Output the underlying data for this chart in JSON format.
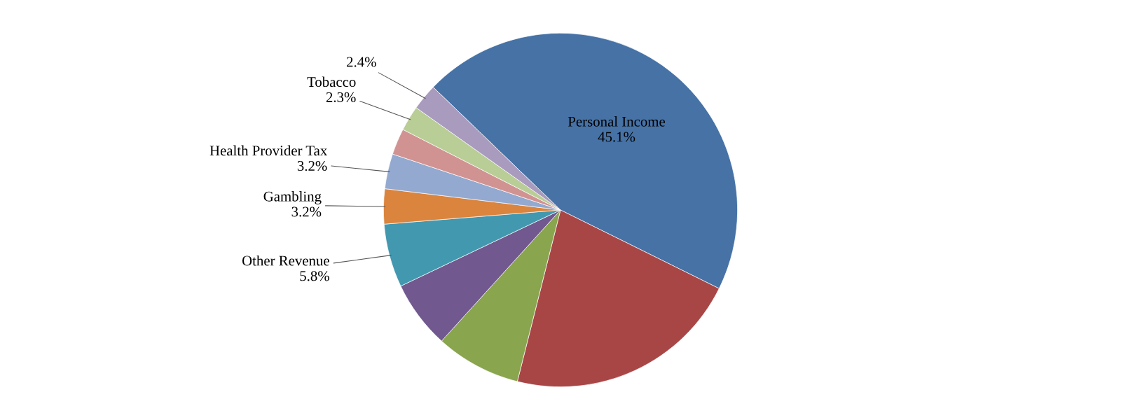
{
  "chart_data": {
    "type": "pie",
    "categories": [
      "Personal Income",
      null,
      null,
      null,
      "Other Revenue",
      "Gambling",
      "Health Provider Tax",
      null,
      "Tobacco",
      null
    ],
    "values": [
      45.1,
      21.6,
      7.8,
      6.2,
      5.8,
      3.2,
      3.2,
      2.4,
      2.3,
      2.4
    ],
    "value_labels": [
      "45.1%",
      null,
      null,
      null,
      "5.8%",
      "3.2%",
      "3.2%",
      null,
      "2.3%",
      "2.4%"
    ],
    "colors": [
      "#4672a6",
      "#a84646",
      "#89a54e",
      "#71588f",
      "#4298af",
      "#db843d",
      "#93a9cf",
      "#d19392",
      "#b9cd96",
      "#a99bbd"
    ]
  }
}
